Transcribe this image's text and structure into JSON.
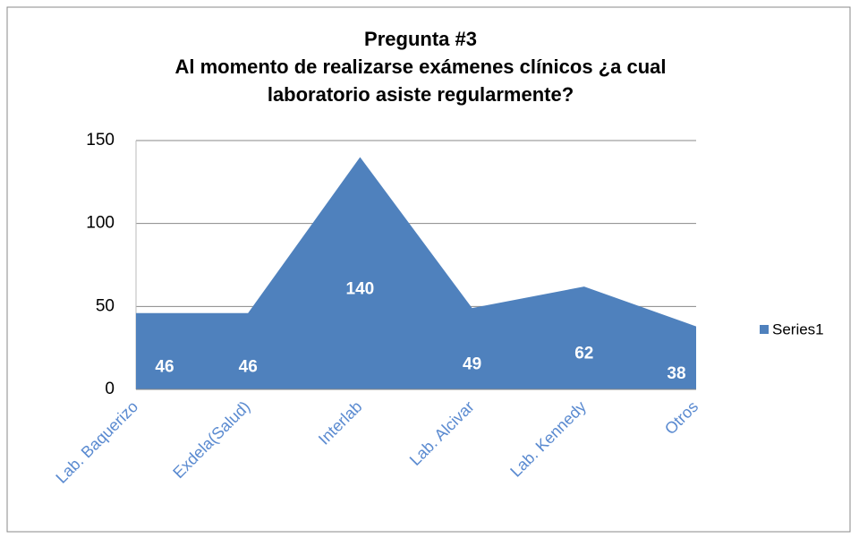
{
  "chart_data": {
    "type": "area",
    "title": [
      "Pregunta #3",
      "Al momento de realizarse exámenes clínicos ¿a cual",
      "laboratorio asiste regularmente?"
    ],
    "categories": [
      "Lab. Baquerizo",
      "Exdela(Salud)",
      "Interlab",
      "Lab. Alcivar",
      "Lab. Kennedy",
      "Otros"
    ],
    "series": [
      {
        "name": "Series1",
        "color": "#4f81bd",
        "values": [
          46,
          46,
          140,
          49,
          62,
          38
        ]
      }
    ],
    "ylim": [
      0,
      150
    ],
    "yticks": [
      0,
      50,
      100,
      150
    ],
    "grid": true,
    "legend": "right"
  }
}
